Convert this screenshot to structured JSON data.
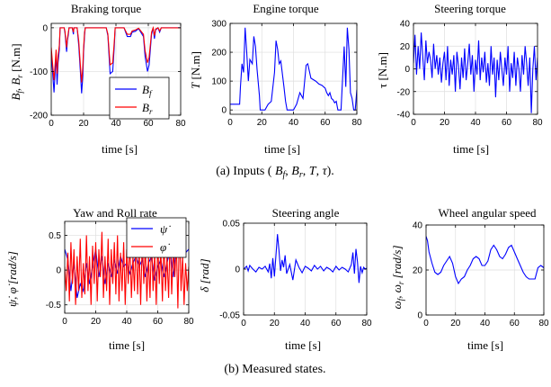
{
  "figure": {
    "caption_a": "(a)  Inputs ( B_f, B_r, T, τ).",
    "caption_b": "(b)  Measured states."
  },
  "chart_data": [
    {
      "id": "braking",
      "type": "line",
      "title": "Braking torque",
      "xlabel": "time [s]",
      "ylabel": "B_f, B_r [N.m]",
      "xlim": [
        0,
        80
      ],
      "ylim": [
        -200,
        10
      ],
      "xticks": [
        0,
        20,
        40,
        60,
        80
      ],
      "yticks": [
        0,
        -100,
        -200
      ],
      "grid": true,
      "legend_position": "bottom-right",
      "series": [
        {
          "name": "B_f",
          "color": "#0000ff",
          "x": [
            0,
            1,
            1.7,
            2.5,
            3,
            3.6,
            4.2,
            5,
            5.5,
            8,
            8.5,
            9.5,
            10,
            10.6,
            11,
            13,
            13.7,
            14,
            16,
            17,
            18,
            18.8,
            19.5,
            20,
            20.6,
            21,
            24,
            26,
            30,
            34,
            35,
            36.4,
            38,
            39,
            39.5,
            45,
            47,
            49,
            50,
            52,
            54,
            57,
            58,
            59.5,
            60.5,
            62,
            63,
            63.8,
            64.5,
            66,
            67,
            68,
            75,
            80
          ],
          "y": [
            -55,
            -110,
            -148,
            -95,
            -60,
            -130,
            -80,
            -50,
            0,
            0,
            -12,
            -55,
            -30,
            -15,
            0,
            0,
            -15,
            0,
            0,
            -40,
            -100,
            -150,
            -110,
            -55,
            -18,
            0,
            0,
            0,
            0,
            0,
            -18,
            -105,
            -100,
            -40,
            0,
            0,
            -20,
            -20,
            -10,
            -8,
            -2,
            -20,
            -65,
            -100,
            -85,
            -15,
            0,
            -25,
            -5,
            0,
            -10,
            0,
            0,
            0
          ]
        },
        {
          "name": "B_r",
          "color": "#ff0000",
          "x": [
            0,
            1,
            1.7,
            2.5,
            3,
            3.6,
            4.2,
            5,
            5.5,
            8,
            8.5,
            9.5,
            10,
            10.6,
            11,
            13,
            13.7,
            14,
            16,
            17,
            18,
            18.8,
            19.5,
            20,
            20.6,
            21,
            24,
            26,
            30,
            34,
            35,
            36.4,
            38,
            39,
            39.5,
            45,
            47,
            49,
            50,
            52,
            54,
            57,
            58,
            59.5,
            60.5,
            62,
            63,
            63.8,
            64.5,
            66,
            67,
            68,
            75,
            80
          ],
          "y": [
            -45,
            -90,
            -120,
            -78,
            -50,
            -105,
            -65,
            -40,
            0,
            0,
            -8,
            -45,
            -25,
            -10,
            0,
            0,
            -10,
            0,
            0,
            -30,
            -85,
            -125,
            -90,
            -45,
            -12,
            0,
            0,
            0,
            0,
            0,
            -14,
            -85,
            -80,
            -30,
            0,
            0,
            -15,
            -15,
            -7,
            -5,
            -1,
            -15,
            -52,
            -80,
            -68,
            -10,
            0,
            -18,
            -3,
            0,
            -7,
            0,
            0,
            0
          ]
        }
      ],
      "legend": [
        "B_f",
        "B_r"
      ]
    },
    {
      "id": "engine",
      "type": "line",
      "title": "Engine torque",
      "xlabel": "time [s]",
      "ylabel": "T [N.m]",
      "xlim": [
        0,
        80
      ],
      "ylim": [
        -15,
        300
      ],
      "xticks": [
        0,
        20,
        40,
        60,
        80
      ],
      "yticks": [
        0,
        100,
        200,
        300
      ],
      "grid": true,
      "series": [
        {
          "name": "T",
          "color": "#0000ff",
          "x": [
            0,
            6,
            6.5,
            7.5,
            8.5,
            9.5,
            10.5,
            11.5,
            12.5,
            14,
            15,
            16,
            17,
            18.5,
            19,
            22,
            24,
            26,
            28,
            29,
            30,
            31,
            32,
            34,
            35,
            36,
            40,
            42,
            44,
            46,
            48,
            49,
            51,
            54,
            56,
            58,
            60,
            61,
            62,
            63,
            64,
            65,
            66,
            67,
            68,
            70,
            72,
            73,
            74,
            75,
            76,
            77,
            78,
            79,
            80
          ],
          "y": [
            20,
            20,
            80,
            160,
            130,
            285,
            200,
            100,
            175,
            160,
            255,
            220,
            140,
            50,
            0,
            0,
            20,
            30,
            130,
            240,
            210,
            160,
            170,
            80,
            30,
            0,
            0,
            20,
            60,
            40,
            155,
            160,
            110,
            100,
            90,
            85,
            75,
            60,
            50,
            60,
            40,
            35,
            25,
            30,
            0,
            0,
            220,
            80,
            285,
            210,
            60,
            40,
            0,
            0,
            70
          ]
        }
      ]
    },
    {
      "id": "steering_torque",
      "type": "line",
      "title": "Steering torque",
      "xlabel": "time [s]",
      "ylabel": "τ [N.m]",
      "xlim": [
        0,
        80
      ],
      "ylim": [
        -40,
        40
      ],
      "xticks": [
        0,
        20,
        40,
        60,
        80
      ],
      "yticks": [
        -40,
        -20,
        0,
        20,
        40
      ],
      "grid": true,
      "series": [
        {
          "name": "τ",
          "color": "#0000ff",
          "x": [
            0,
            1,
            2,
            3,
            4,
            5,
            6,
            7,
            8,
            9,
            10,
            11,
            12,
            13,
            14,
            15,
            16,
            17,
            18,
            19,
            20,
            21,
            22,
            23,
            24,
            25,
            26,
            27,
            28,
            29,
            30,
            31,
            32,
            33,
            34,
            35,
            36,
            37,
            38,
            39,
            40,
            41,
            42,
            43,
            44,
            45,
            46,
            47,
            48,
            49,
            50,
            51,
            52,
            53,
            54,
            55,
            56,
            57,
            58,
            59,
            60,
            61,
            62,
            63,
            64,
            65,
            66,
            67,
            68,
            69,
            70,
            71,
            72,
            73,
            74,
            75,
            76,
            77,
            78,
            79,
            80
          ],
          "y": [
            5,
            30,
            -5,
            20,
            0,
            32,
            10,
            -10,
            25,
            5,
            15,
            8,
            -8,
            22,
            0,
            12,
            -5,
            10,
            -12,
            5,
            15,
            -10,
            20,
            -15,
            8,
            -5,
            12,
            -20,
            15,
            3,
            -18,
            10,
            -8,
            18,
            -10,
            5,
            22,
            -5,
            12,
            -20,
            8,
            -5,
            25,
            -10,
            10,
            -3,
            15,
            -12,
            5,
            -15,
            20,
            -5,
            10,
            -25,
            8,
            -10,
            15,
            0,
            -15,
            10,
            -5,
            20,
            -20,
            5,
            -8,
            15,
            -15,
            10,
            0,
            -20,
            12,
            -5,
            20,
            5,
            -15,
            10,
            -39,
            0,
            20,
            -10,
            10
          ]
        }
      ]
    },
    {
      "id": "yaw_roll",
      "type": "line",
      "title": "Yaw and Roll rate",
      "xlabel": "time [s]",
      "ylabel": "ψ̇, φ̇ [rad/s]",
      "xlim": [
        0,
        80
      ],
      "ylim": [
        -0.62,
        0.7
      ],
      "xticks": [
        0,
        20,
        40,
        60,
        80
      ],
      "yticks": [
        -0.5,
        0,
        0.5
      ],
      "grid": true,
      "legend_position": "top-right",
      "series": [
        {
          "name": "ψ̇",
          "color": "#0000ff",
          "x": [
            0,
            2,
            4,
            6,
            8,
            10,
            12,
            14,
            16,
            18,
            20,
            22,
            24,
            26,
            28,
            30,
            32,
            34,
            36,
            38,
            40,
            42,
            44,
            46,
            48,
            50,
            52,
            54,
            56,
            58,
            60,
            62,
            64,
            66,
            68,
            70,
            72,
            74,
            76,
            78,
            80
          ],
          "y": [
            0.3,
            0.15,
            -0.3,
            0.1,
            -0.4,
            -0.2,
            -0.3,
            0.1,
            -0.2,
            0.05,
            0.3,
            -0.1,
            0.2,
            -0.2,
            0.1,
            -0.1,
            0.15,
            -0.05,
            0.2,
            0.05,
            0.1,
            -0.05,
            0.1,
            0.2,
            0.05,
            0.15,
            -0.1,
            0.1,
            0.2,
            -0.15,
            0.05,
            0.15,
            -0.1,
            0.1,
            0.3,
            -0.1,
            0.35,
            0.2,
            0.3,
            0.25,
            0.3
          ]
        },
        {
          "name": "φ̇",
          "color": "#ff0000",
          "x": [
            0,
            1,
            2,
            3,
            4,
            5,
            6,
            7,
            8,
            9,
            10,
            11,
            12,
            13,
            14,
            15,
            16,
            17,
            18,
            19,
            20,
            21,
            22,
            23,
            24,
            25,
            26,
            27,
            28,
            29,
            30,
            31,
            32,
            33,
            34,
            35,
            36,
            37,
            38,
            39,
            40,
            41,
            42,
            43,
            44,
            45,
            46,
            47,
            48,
            49,
            50,
            51,
            52,
            53,
            54,
            55,
            56,
            57,
            58,
            59,
            60,
            61,
            62,
            63,
            64,
            65,
            66,
            67,
            68,
            69,
            70,
            71,
            72,
            73,
            74,
            75,
            76,
            77,
            78,
            79,
            80
          ],
          "y": [
            0.05,
            -0.3,
            0.25,
            -0.45,
            0.4,
            -0.2,
            0.3,
            -0.5,
            0.2,
            -0.3,
            0.45,
            -0.4,
            0.1,
            -0.35,
            0.5,
            -0.3,
            0.2,
            -0.5,
            0.35,
            -0.2,
            0.4,
            -0.45,
            0.3,
            -0.1,
            0.55,
            -0.4,
            0.2,
            -0.3,
            0.45,
            -0.5,
            0.3,
            -0.2,
            0.4,
            -0.35,
            0.5,
            -0.45,
            0.25,
            -0.3,
            0.4,
            -0.5,
            0.3,
            -0.2,
            0.45,
            -0.4,
            0.2,
            -0.3,
            0.5,
            -0.35,
            0.3,
            -0.5,
            0.45,
            -0.2,
            0.35,
            -0.45,
            0.2,
            -0.4,
            0.5,
            -0.3,
            0.25,
            -0.5,
            0.4,
            -0.2,
            0.3,
            -0.45,
            0.45,
            -0.3,
            0.2,
            -0.4,
            0.55,
            -0.35,
            0.3,
            -0.1,
            0.4,
            -0.55,
            0.65,
            -0.3,
            0.2,
            -0.5,
            0.1,
            -0.3,
            0.05
          ]
        }
      ],
      "legend": [
        "ψ̇",
        "φ̇"
      ]
    },
    {
      "id": "steering_angle",
      "type": "line",
      "title": "Steering angle",
      "xlabel": "time [s]",
      "ylabel": "δ [rad]",
      "xlim": [
        0,
        80
      ],
      "ylim": [
        -0.05,
        0.05
      ],
      "xticks": [
        0,
        20,
        40,
        60,
        80
      ],
      "yticks": [
        -0.05,
        0,
        0.05
      ],
      "grid": true,
      "series": [
        {
          "name": "δ",
          "color": "#0000ff",
          "x": [
            0,
            2,
            3,
            4,
            6,
            8,
            10,
            12,
            14,
            16,
            17,
            18,
            19,
            20,
            21,
            22,
            23,
            24,
            25,
            26,
            27,
            28,
            30,
            32,
            34,
            36,
            38,
            40,
            42,
            44,
            46,
            48,
            50,
            52,
            54,
            56,
            58,
            60,
            62,
            64,
            66,
            68,
            70,
            71,
            72,
            73,
            74,
            75,
            76,
            77,
            78,
            79,
            80
          ],
          "y": [
            0,
            0.003,
            -0.002,
            0.004,
            0,
            -0.003,
            0.002,
            0,
            0.003,
            -0.003,
            0.006,
            -0.01,
            0.012,
            -0.008,
            0.015,
            0.038,
            0.02,
            -0.002,
            0.01,
            0.002,
            0.015,
            -0.005,
            0.005,
            -0.012,
            0.01,
            0.002,
            -0.004,
            0.003,
            0.001,
            -0.002,
            0.004,
            0,
            0.003,
            -0.002,
            0.002,
            0,
            -0.003,
            0.003,
            -0.001,
            0.002,
            0,
            -0.003,
            0.005,
            0.018,
            -0.005,
            0.022,
            0.008,
            -0.015,
            0.003,
            -0.004,
            0.002,
            0,
            0.001
          ]
        }
      ]
    },
    {
      "id": "wheel_speed",
      "type": "line",
      "title": "Wheel angular speed",
      "xlabel": "time [s]",
      "ylabel": "ω_f, ω_r [rad/s]",
      "xlim": [
        0,
        80
      ],
      "ylim": [
        0,
        40
      ],
      "xticks": [
        0,
        20,
        40,
        60,
        80
      ],
      "yticks": [
        0,
        20,
        40
      ],
      "grid": true,
      "series": [
        {
          "name": "ω_f",
          "color": "#0000ff",
          "x": [
            0,
            1,
            2,
            4,
            6,
            8,
            10,
            12,
            14,
            16,
            18,
            20,
            22,
            24,
            26,
            28,
            30,
            32,
            34,
            36,
            38,
            40,
            42,
            44,
            46,
            48,
            50,
            52,
            54,
            56,
            58,
            60,
            62,
            64,
            66,
            68,
            70,
            72,
            74,
            76,
            78,
            80
          ],
          "y": [
            35,
            33,
            28,
            23,
            19,
            18,
            19,
            22,
            24,
            26,
            23,
            17,
            14,
            16,
            17,
            20,
            22,
            25,
            26,
            25,
            22,
            22,
            24,
            29,
            31,
            29,
            26,
            25,
            27,
            30,
            31,
            28,
            25,
            22,
            19,
            17,
            16,
            16,
            16,
            21,
            22,
            21
          ]
        }
      ]
    }
  ]
}
